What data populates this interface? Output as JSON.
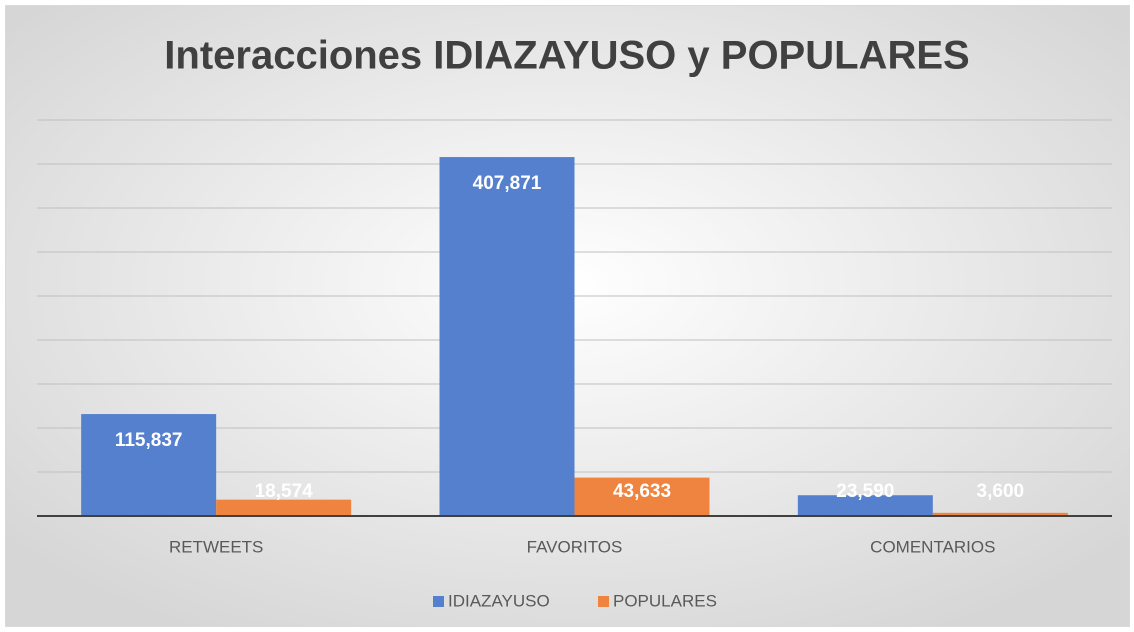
{
  "chart_data": {
    "type": "bar",
    "title": "Interacciones IDIAZAYUSO y POPULARES",
    "categories": [
      "RETWEETS",
      "FAVORITOS",
      "COMENTARIOS"
    ],
    "series": [
      {
        "name": "IDIAZAYUSO",
        "color": "#5580cd",
        "values": [
          115837,
          407871,
          23590
        ],
        "value_labels": [
          "115,837",
          "407,871",
          "23,590"
        ]
      },
      {
        "name": "POPULARES",
        "color": "#ee8440",
        "values": [
          18574,
          43633,
          3600
        ],
        "value_labels": [
          "18,574",
          "43,633",
          "3,600"
        ]
      }
    ],
    "ylim": [
      0,
      450000
    ],
    "yticks": [
      0,
      50000,
      100000,
      150000,
      200000,
      250000,
      300000,
      350000,
      400000,
      450000
    ],
    "grid": true,
    "legend": "bottom"
  }
}
